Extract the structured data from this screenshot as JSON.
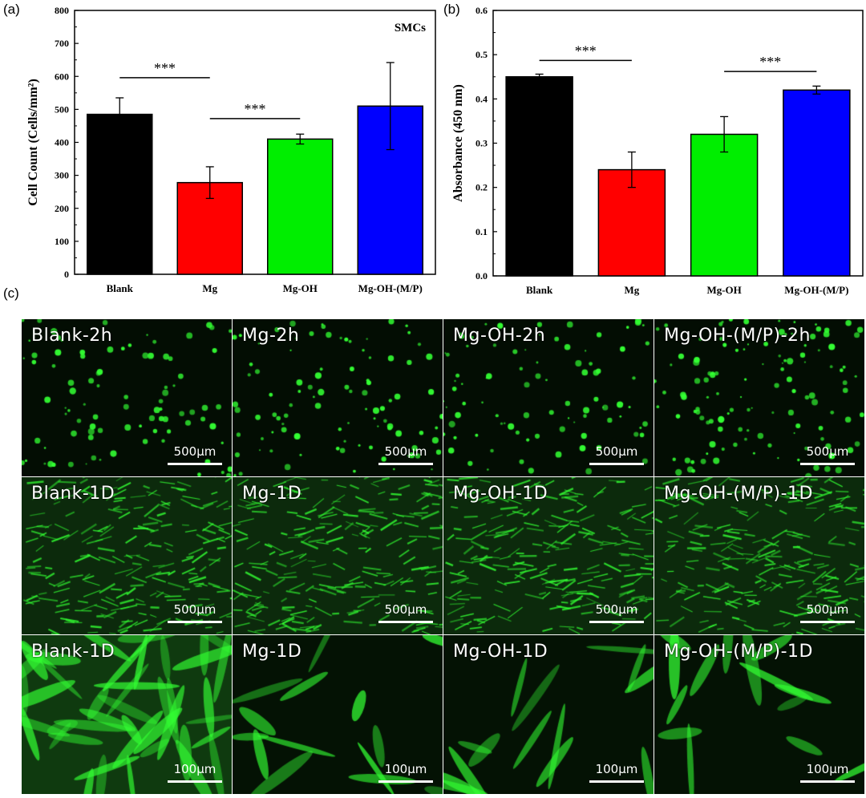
{
  "panels": {
    "a": "(a)",
    "b": "(b)",
    "c": "(c)"
  },
  "colors": {
    "Blank": "#000000",
    "Mg": "#ff0000",
    "Mg-OH": "#00ee00",
    "Mg-OH-(M/P)": "#0000ff",
    "fluorescence": "#33ff33"
  },
  "chart_data": [
    {
      "type": "bar",
      "panel": "(a)",
      "title": "SMCs",
      "xlabel": "",
      "ylabel": "Cell Count (Cells/mm²)",
      "ylim": [
        0,
        800
      ],
      "yticks": [
        "0",
        "100",
        "200",
        "300",
        "400",
        "500",
        "600",
        "700",
        "800"
      ],
      "categories": [
        "Blank",
        "Mg",
        "Mg-OH",
        "Mg-OH-(M/P)"
      ],
      "values": [
        485,
        278,
        410,
        510
      ],
      "errors": [
        50,
        48,
        15,
        132
      ],
      "significance": [
        {
          "from": "Blank",
          "to": "Mg",
          "label": "***",
          "y": 596
        },
        {
          "from": "Mg",
          "to": "Mg-OH",
          "label": "***",
          "y": 472
        }
      ],
      "grid": false
    },
    {
      "type": "bar",
      "panel": "(b)",
      "title": "",
      "xlabel": "",
      "ylabel": "Absorbance (450 nm)",
      "ylim": [
        0,
        0.6
      ],
      "yticks": [
        "0.0",
        "0.1",
        "0.2",
        "0.3",
        "0.4",
        "0.5",
        "0.6"
      ],
      "categories": [
        "Blank",
        "Mg",
        "Mg-OH",
        "Mg-OH-(M/P)"
      ],
      "values": [
        0.45,
        0.24,
        0.32,
        0.42
      ],
      "errors": [
        0.006,
        0.04,
        0.04,
        0.009
      ],
      "significance": [
        {
          "from": "Blank",
          "to": "Mg",
          "label": "***",
          "y": 0.487
        },
        {
          "from": "Mg-OH",
          "to": "Mg-OH-(M/P)",
          "label": "***",
          "y": 0.462
        }
      ],
      "grid": false
    }
  ],
  "micrographs": {
    "rows": [
      {
        "labels": [
          "Blank-2h",
          "Mg-2h",
          "Mg-OH-2h",
          "Mg-OH-(M/P)-2h"
        ],
        "scale": "500μm",
        "style": "dots"
      },
      {
        "labels": [
          "Blank-1D",
          "Mg-1D",
          "Mg-OH-1D",
          "Mg-OH-(M/P)-1D"
        ],
        "scale": "500μm",
        "style": "spindles"
      },
      {
        "labels": [
          "Blank-1D",
          "Mg-1D",
          "Mg-OH-1D",
          "Mg-OH-(M/P)-1D"
        ],
        "scale": "100μm",
        "style": "cells"
      }
    ]
  }
}
